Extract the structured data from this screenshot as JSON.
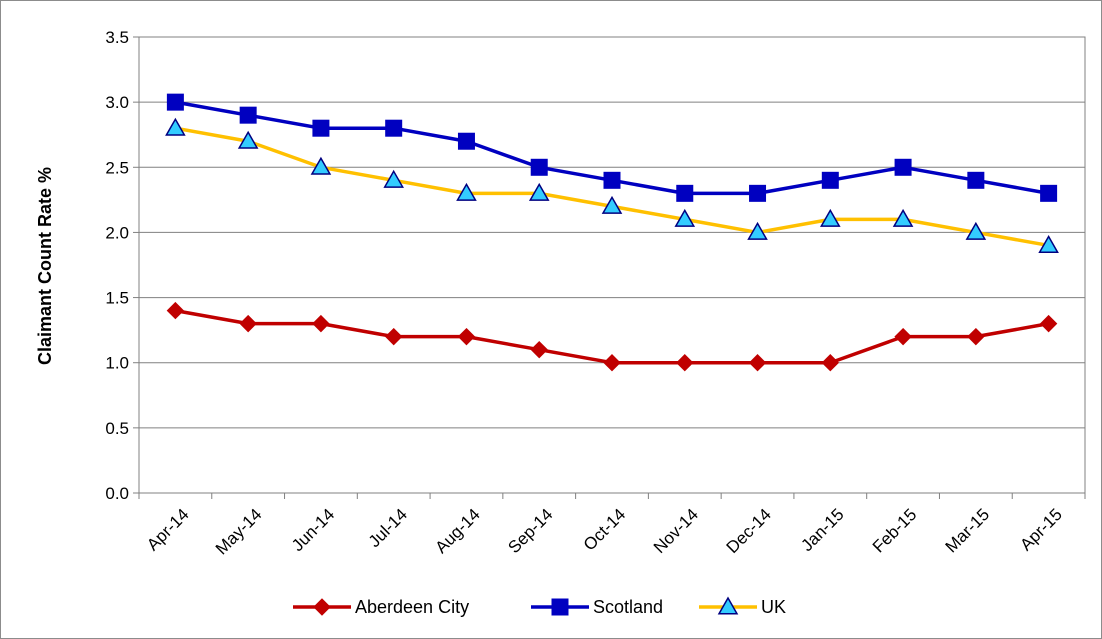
{
  "chart_data": {
    "type": "line",
    "categories": [
      "Apr-14",
      "May-14",
      "Jun-14",
      "Jul-14",
      "Aug-14",
      "Sep-14",
      "Oct-14",
      "Nov-14",
      "Dec-14",
      "Jan-15",
      "Feb-15",
      "Mar-15",
      "Apr-15"
    ],
    "series": [
      {
        "name": "Aberdeen City",
        "values": [
          1.4,
          1.3,
          1.3,
          1.2,
          1.2,
          1.1,
          1.0,
          1.0,
          1.0,
          1.0,
          1.2,
          1.2,
          1.3
        ],
        "color": "#c00000",
        "marker": "diamond"
      },
      {
        "name": "Scotland",
        "values": [
          3.0,
          2.9,
          2.8,
          2.8,
          2.7,
          2.5,
          2.4,
          2.3,
          2.3,
          2.4,
          2.5,
          2.4,
          2.3
        ],
        "color": "#0000c0",
        "marker": "square"
      },
      {
        "name": "UK",
        "values": [
          2.8,
          2.7,
          2.5,
          2.4,
          2.3,
          2.3,
          2.2,
          2.1,
          2.0,
          2.1,
          2.1,
          2.0,
          1.9
        ],
        "color": "#ffc000",
        "marker": "triangle",
        "marker_fill": "#33ccff"
      }
    ],
    "title": "",
    "xlabel": "",
    "ylabel": "Claimant Count Rate %",
    "ylim": [
      0,
      3.5
    ],
    "yticks": [
      "0.0",
      "0.5",
      "1.0",
      "1.5",
      "2.0",
      "2.5",
      "3.0",
      "3.5"
    ],
    "grid": true,
    "legend_position": "bottom"
  }
}
